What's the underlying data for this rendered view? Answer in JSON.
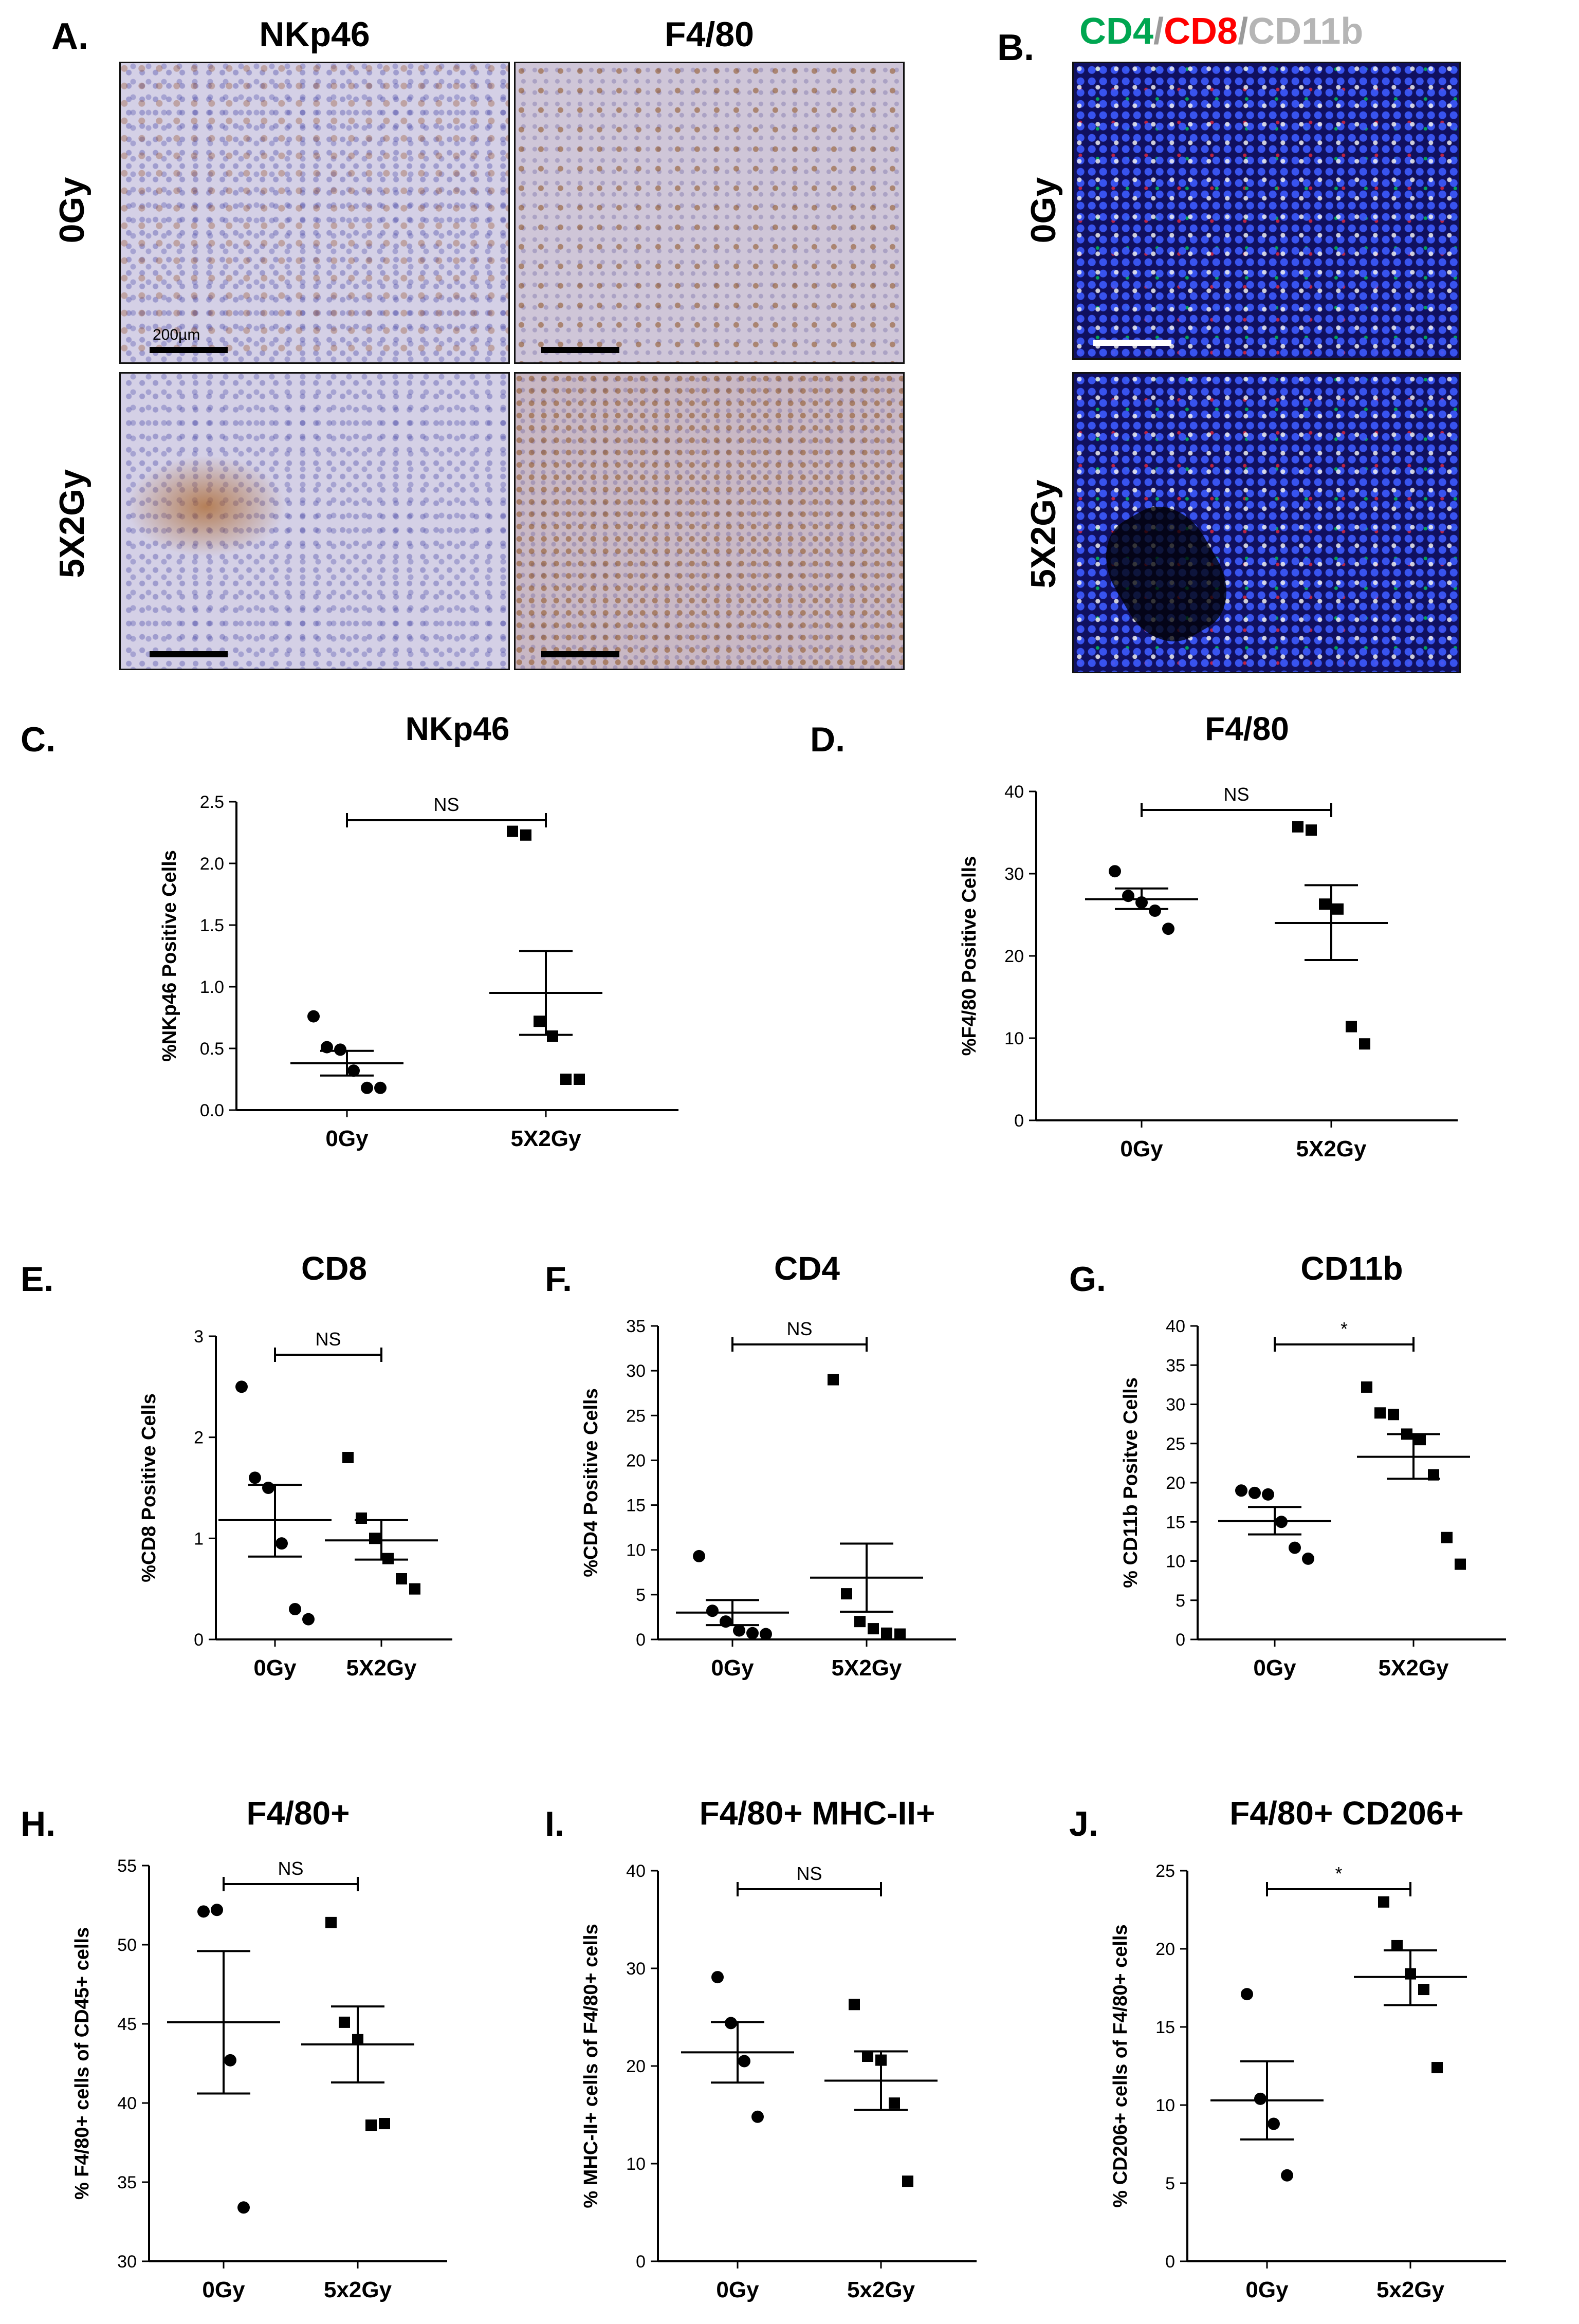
{
  "panelA": {
    "letter": "A.",
    "col_titles": [
      "NKp46",
      "F4/80"
    ],
    "row_labels": [
      "0Gy",
      "5X2Gy"
    ],
    "scalebar_label": "200µm"
  },
  "panelB": {
    "letter": "B.",
    "title_parts": [
      {
        "text": "CD4",
        "color": "#00a651"
      },
      {
        "text": "/",
        "color": "#9a9a9a"
      },
      {
        "text": "CD8",
        "color": "#ff0000"
      },
      {
        "text": "/",
        "color": "#9a9a9a"
      },
      {
        "text": "CD11b",
        "color": "#b5b5b5"
      }
    ],
    "row_labels": [
      "0Gy",
      "5X2Gy"
    ]
  },
  "chart_data": [
    {
      "letter": "C.",
      "title": "NKp46",
      "type": "scatter",
      "ylabel": "%NKp46 Positive Cells",
      "categories": [
        "0Gy",
        "5X2Gy"
      ],
      "ylim": [
        0,
        2.5
      ],
      "yticks": [
        0.0,
        0.5,
        1.0,
        1.5,
        2.0,
        2.5
      ],
      "yticklabels": [
        "0.0",
        "0.5",
        "1.0",
        "1.5",
        "2.0",
        "2.5"
      ],
      "decimals": 1,
      "groups": [
        {
          "name": "0Gy",
          "marker": "circle",
          "values": [
            0.76,
            0.51,
            0.49,
            0.32,
            0.18,
            0.18
          ],
          "mean": 0.38,
          "sem_low": 0.28,
          "sem_high": 0.48
        },
        {
          "name": "5X2Gy",
          "marker": "square",
          "values": [
            2.26,
            2.23,
            0.72,
            0.6,
            0.25,
            0.25
          ],
          "mean": 0.95,
          "sem_low": 0.61,
          "sem_high": 1.29
        }
      ],
      "significance": "NS"
    },
    {
      "letter": "D.",
      "title": "F4/80",
      "type": "scatter",
      "ylabel": "%F4/80 Positive Cells",
      "categories": [
        "0Gy",
        "5X2Gy"
      ],
      "ylim": [
        0,
        40
      ],
      "yticks": [
        0,
        10,
        20,
        30,
        40
      ],
      "yticklabels": [
        "0",
        "10",
        "20",
        "30",
        "40"
      ],
      "decimals": 0,
      "groups": [
        {
          "name": "0Gy",
          "marker": "circle",
          "values": [
            30.3,
            27.3,
            26.5,
            25.5,
            23.3
          ],
          "mean": 26.9,
          "sem_low": 25.7,
          "sem_high": 28.2
        },
        {
          "name": "5X2Gy",
          "marker": "square",
          "values": [
            35.7,
            35.3,
            26.3,
            25.7,
            11.4,
            9.3
          ],
          "mean": 24.0,
          "sem_low": 19.5,
          "sem_high": 28.6
        }
      ],
      "significance": "NS"
    },
    {
      "letter": "E.",
      "title": "CD8",
      "type": "scatter",
      "ylabel": "%CD8 Positive Cells",
      "categories": [
        "0Gy",
        "5X2Gy"
      ],
      "ylim": [
        0,
        3
      ],
      "yticks": [
        0,
        1,
        2,
        3
      ],
      "yticklabels": [
        "0",
        "1",
        "2",
        "3"
      ],
      "decimals": 0,
      "groups": [
        {
          "name": "0Gy",
          "marker": "circle",
          "values": [
            2.5,
            1.6,
            1.5,
            0.95,
            0.3,
            0.2
          ],
          "mean": 1.18,
          "sem_low": 0.82,
          "sem_high": 1.53
        },
        {
          "name": "5X2Gy",
          "marker": "square",
          "values": [
            1.8,
            1.2,
            1.0,
            0.8,
            0.6,
            0.5
          ],
          "mean": 0.98,
          "sem_low": 0.79,
          "sem_high": 1.18
        }
      ],
      "significance": "NS"
    },
    {
      "letter": "F.",
      "title": "CD4",
      "type": "scatter",
      "ylabel": "%CD4 Positive Cells",
      "categories": [
        "0Gy",
        "5X2Gy"
      ],
      "ylim": [
        0,
        35
      ],
      "yticks": [
        0,
        5,
        10,
        15,
        20,
        25,
        30,
        35
      ],
      "yticklabels": [
        "0",
        "5",
        "10",
        "15",
        "20",
        "25",
        "30",
        "35"
      ],
      "decimals": 0,
      "groups": [
        {
          "name": "0Gy",
          "marker": "circle",
          "values": [
            9.3,
            3.2,
            2.0,
            1.0,
            0.7,
            0.6
          ],
          "mean": 3.0,
          "sem_low": 1.6,
          "sem_high": 4.4
        },
        {
          "name": "5X2Gy",
          "marker": "square",
          "values": [
            29.0,
            5.1,
            2.0,
            1.2,
            0.7,
            0.6
          ],
          "mean": 6.9,
          "sem_low": 3.1,
          "sem_high": 10.7
        }
      ],
      "significance": "NS"
    },
    {
      "letter": "G.",
      "title": "CD11b",
      "type": "scatter",
      "ylabel": "% CD11b Positve Cells",
      "categories": [
        "0Gy",
        "5X2Gy"
      ],
      "ylim": [
        0,
        40
      ],
      "yticks": [
        0,
        5,
        10,
        15,
        20,
        25,
        30,
        35,
        40
      ],
      "yticklabels": [
        "0",
        "5",
        "10",
        "15",
        "20",
        "25",
        "30",
        "35",
        "40"
      ],
      "decimals": 0,
      "groups": [
        {
          "name": "0Gy",
          "marker": "circle",
          "values": [
            19.0,
            18.7,
            18.5,
            15.0,
            11.7,
            10.3
          ],
          "mean": 15.1,
          "sem_low": 13.4,
          "sem_high": 16.9
        },
        {
          "name": "5X2Gy",
          "marker": "square",
          "values": [
            32.2,
            28.9,
            28.7,
            26.2,
            25.5,
            21.0,
            13.0,
            9.6
          ],
          "mean": 23.3,
          "sem_low": 20.5,
          "sem_high": 26.2
        }
      ],
      "significance": "*"
    },
    {
      "letter": "H.",
      "title": "F4/80+",
      "type": "scatter",
      "ylabel": "% F4/80+ cells of CD45+ cells",
      "categories": [
        "0Gy",
        "5x2Gy"
      ],
      "ylim": [
        30,
        55
      ],
      "yticks": [
        30,
        35,
        40,
        45,
        50,
        55
      ],
      "yticklabels": [
        "30",
        "35",
        "40",
        "45",
        "50",
        "55"
      ],
      "decimals": 0,
      "groups": [
        {
          "name": "0Gy",
          "marker": "circle",
          "values": [
            52.1,
            52.2,
            42.7,
            33.4
          ],
          "mean": 45.1,
          "sem_low": 40.6,
          "sem_high": 49.6
        },
        {
          "name": "5x2Gy",
          "marker": "square",
          "values": [
            51.4,
            45.1,
            44.0,
            38.6,
            38.7
          ],
          "mean": 43.7,
          "sem_low": 41.3,
          "sem_high": 46.1
        }
      ],
      "significance": "NS"
    },
    {
      "letter": "I.",
      "title": "F4/80+ MHC-II+",
      "type": "scatter",
      "ylabel": "% MHC-II+ cells of F4/80+ cells",
      "categories": [
        "0Gy",
        "5x2Gy"
      ],
      "ylim": [
        0,
        40
      ],
      "yticks": [
        0,
        10,
        20,
        30,
        40
      ],
      "yticklabels": [
        "0",
        "10",
        "20",
        "30",
        "40"
      ],
      "decimals": 0,
      "groups": [
        {
          "name": "0Gy",
          "marker": "circle",
          "values": [
            29.1,
            24.4,
            20.5,
            14.8
          ],
          "mean": 21.4,
          "sem_low": 18.3,
          "sem_high": 24.5
        },
        {
          "name": "5x2Gy",
          "marker": "square",
          "values": [
            26.3,
            21.0,
            20.6,
            16.2,
            8.2
          ],
          "mean": 18.5,
          "sem_low": 15.5,
          "sem_high": 21.5
        }
      ],
      "significance": "NS"
    },
    {
      "letter": "J.",
      "title": "F4/80+ CD206+",
      "type": "scatter",
      "ylabel": "% CD206+ cells of F4/80+ cells",
      "categories": [
        "0Gy",
        "5x2Gy"
      ],
      "ylim": [
        0,
        25
      ],
      "yticks": [
        0,
        5,
        10,
        15,
        20,
        25
      ],
      "yticklabels": [
        "0",
        "5",
        "10",
        "15",
        "20",
        "25"
      ],
      "decimals": 0,
      "groups": [
        {
          "name": "0Gy",
          "marker": "circle",
          "values": [
            17.1,
            10.4,
            8.8,
            5.5
          ],
          "mean": 10.3,
          "sem_low": 7.8,
          "sem_high": 12.8
        },
        {
          "name": "5x2Gy",
          "marker": "square",
          "values": [
            23.0,
            20.2,
            18.4,
            17.4,
            12.4
          ],
          "mean": 18.2,
          "sem_low": 16.4,
          "sem_high": 19.9
        },
        {
          "name": "",
          "marker": "none",
          "values": []
        }
      ],
      "significance": "*"
    }
  ]
}
